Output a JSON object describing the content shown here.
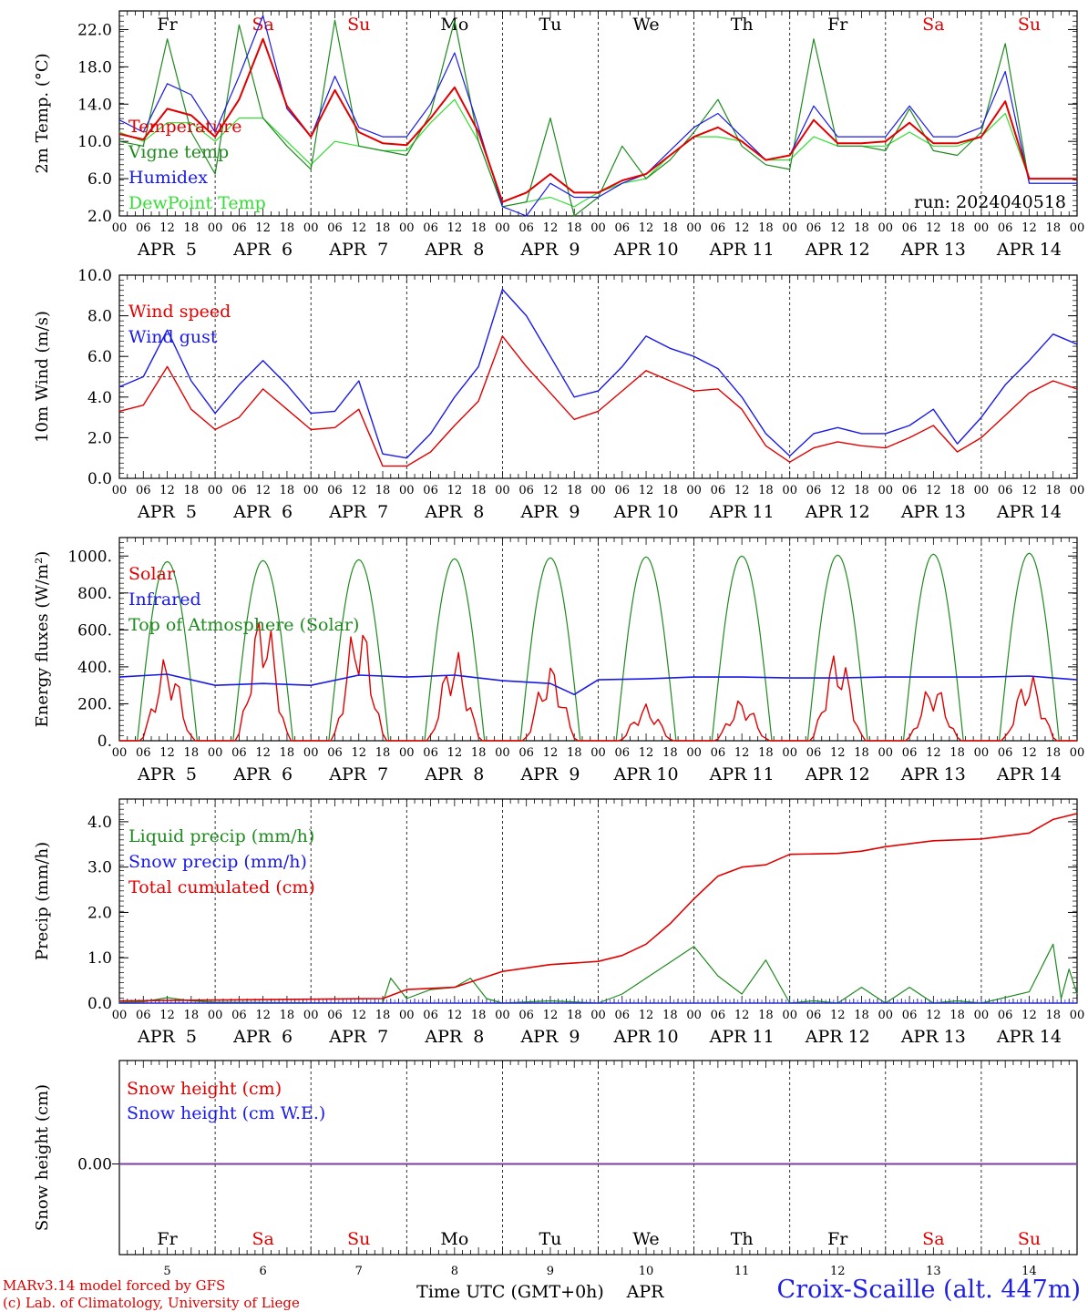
{
  "days": [
    {
      "dow": "Fr",
      "date": "APR  5",
      "num": "5",
      "weekend": false
    },
    {
      "dow": "Sa",
      "date": "APR  6",
      "num": "6",
      "weekend": true
    },
    {
      "dow": "Su",
      "date": "APR  7",
      "num": "7",
      "weekend": true
    },
    {
      "dow": "Mo",
      "date": "APR  8",
      "num": "8",
      "weekend": false
    },
    {
      "dow": "Tu",
      "date": "APR  9",
      "num": "9",
      "weekend": false
    },
    {
      "dow": "We",
      "date": "APR 10",
      "num": "10",
      "weekend": false
    },
    {
      "dow": "Th",
      "date": "APR 11",
      "num": "11",
      "weekend": false
    },
    {
      "dow": "Fr",
      "date": "APR 12",
      "num": "12",
      "weekend": false
    },
    {
      "dow": "Sa",
      "date": "APR 13",
      "num": "13",
      "weekend": true
    },
    {
      "dow": "Su",
      "date": "APR 14",
      "num": "14",
      "weekend": true
    }
  ],
  "hour_ticks": [
    "00",
    "06",
    "12",
    "18"
  ],
  "final_tick": "00",
  "colors": {
    "red": "#e00000",
    "blue": "#1a1ae6",
    "green": "#1f8a1f",
    "lightgreen": "#33dd33",
    "purple": "#7a3fa0"
  },
  "footer": {
    "model": "MARv3.14 model forced by GFS",
    "lab": "(c) Lab. of Climatology, University of Liege",
    "xlabel": "Time UTC (GMT+0h)",
    "month": "APR",
    "station": "Croix-Scaille (alt. 447m)"
  },
  "chart_data": [
    {
      "type": "line",
      "ylabel": "2m Temp. (°C)",
      "ylim": [
        2,
        24
      ],
      "yticks": [
        "2.0",
        "6.0",
        "10.0",
        "14.0",
        "18.0",
        "22.0"
      ],
      "annotation": "run: 2024040518",
      "x": [
        0,
        6,
        12,
        18,
        24,
        30,
        36,
        42,
        48,
        54,
        60,
        66,
        72,
        78,
        84,
        90,
        96,
        102,
        108,
        114,
        120,
        126,
        132,
        138,
        144,
        150,
        156,
        162,
        168,
        174,
        180,
        186,
        192,
        198,
        204,
        210,
        216,
        222,
        228,
        234,
        240
      ],
      "series": [
        {
          "name": "Temperature",
          "color": "red",
          "values": [
            10.8,
            10.2,
            13.5,
            12.8,
            10.5,
            14.5,
            21.0,
            13.8,
            10.5,
            15.5,
            11.0,
            9.8,
            9.6,
            12.5,
            15.8,
            11.0,
            3.5,
            4.5,
            6.5,
            4.5,
            4.5,
            5.8,
            6.5,
            8.5,
            10.5,
            11.5,
            10.0,
            8.0,
            8.5,
            12.3,
            9.8,
            9.8,
            10.0,
            12.0,
            9.8,
            9.8,
            10.5,
            14.3,
            6.0,
            6.0,
            6.0
          ]
        },
        {
          "name": "Vigne temp",
          "color": "green",
          "values": [
            10.0,
            9.5,
            21.0,
            11.0,
            6.5,
            22.5,
            12.5,
            9.5,
            7.0,
            23.0,
            9.5,
            9.0,
            8.5,
            13.0,
            23.0,
            10.0,
            3.0,
            3.5,
            12.5,
            1.5,
            4.0,
            9.5,
            6.0,
            8.0,
            11.0,
            14.5,
            9.5,
            7.5,
            7.0,
            21.0,
            9.5,
            9.5,
            9.0,
            13.5,
            9.0,
            8.5,
            11.0,
            20.5,
            5.5,
            5.5,
            5.5
          ]
        },
        {
          "name": "Humidex",
          "color": "blue",
          "values": [
            12.3,
            11.0,
            16.2,
            15.0,
            11.0,
            17.0,
            23.5,
            13.5,
            10.5,
            17.0,
            11.5,
            10.5,
            10.5,
            14.0,
            19.5,
            11.5,
            3.0,
            2.0,
            5.5,
            4.0,
            4.0,
            5.5,
            6.5,
            9.0,
            11.5,
            13.0,
            10.5,
            8.0,
            8.5,
            13.8,
            10.5,
            10.5,
            10.5,
            13.8,
            10.5,
            10.5,
            11.5,
            17.5,
            5.5,
            5.5,
            5.5
          ]
        },
        {
          "name": "DewPoint Temp",
          "color": "lightgreen",
          "values": [
            11.0,
            10.0,
            12.0,
            12.0,
            10.0,
            12.5,
            12.5,
            10.0,
            7.5,
            10.0,
            9.5,
            9.0,
            9.0,
            12.0,
            14.5,
            10.0,
            3.0,
            3.5,
            4.0,
            3.0,
            4.5,
            5.5,
            6.0,
            8.5,
            10.5,
            10.5,
            10.0,
            8.0,
            8.0,
            10.5,
            9.5,
            9.5,
            9.5,
            11.0,
            9.5,
            9.5,
            10.5,
            13.0,
            6.0,
            6.0,
            6.0
          ]
        }
      ]
    },
    {
      "type": "line",
      "ylabel": "10m Wind (m/s)",
      "ylim": [
        0,
        10
      ],
      "yticks": [
        "0.0",
        "2.0",
        "4.0",
        "6.0",
        "8.0",
        "10.0"
      ],
      "threshold": 5.0,
      "x": [
        0,
        6,
        12,
        18,
        24,
        30,
        36,
        42,
        48,
        54,
        60,
        66,
        72,
        78,
        84,
        90,
        96,
        102,
        108,
        114,
        120,
        126,
        132,
        138,
        144,
        150,
        156,
        162,
        168,
        174,
        180,
        186,
        192,
        198,
        204,
        210,
        216,
        222,
        228,
        234,
        240
      ],
      "series": [
        {
          "name": "Wind speed",
          "color": "red",
          "values": [
            3.3,
            3.6,
            5.5,
            3.4,
            2.4,
            3.0,
            4.4,
            3.4,
            2.4,
            2.5,
            3.4,
            0.6,
            0.6,
            1.3,
            2.6,
            3.8,
            7.0,
            5.5,
            4.2,
            2.9,
            3.3,
            4.3,
            5.3,
            4.8,
            4.3,
            4.4,
            3.4,
            1.6,
            0.8,
            1.5,
            1.8,
            1.6,
            1.5,
            2.0,
            2.6,
            1.3,
            2.0,
            3.1,
            4.2,
            4.8,
            4.4
          ]
        },
        {
          "name": "Wind gust",
          "color": "blue",
          "values": [
            4.5,
            5.0,
            7.3,
            4.8,
            3.2,
            4.6,
            5.8,
            4.6,
            3.2,
            3.3,
            4.8,
            1.2,
            1.0,
            2.2,
            4.0,
            5.5,
            9.3,
            8.0,
            6.0,
            4.0,
            4.3,
            5.5,
            7.0,
            6.4,
            6.0,
            5.4,
            4.0,
            2.2,
            1.1,
            2.2,
            2.5,
            2.2,
            2.2,
            2.6,
            3.4,
            1.7,
            3.0,
            4.6,
            5.8,
            7.1,
            6.6
          ]
        }
      ]
    },
    {
      "type": "line",
      "ylabel": "Energy fluxes (W/m²)",
      "ylim": [
        0,
        1100
      ],
      "yticks": [
        "0.",
        "200.",
        "400.",
        "600.",
        "800.",
        "1000."
      ],
      "series_labels": [
        {
          "name": "Solar",
          "color": "red"
        },
        {
          "name": "Infrared",
          "color": "blue"
        },
        {
          "name": "Top of Atmosphere (Solar)",
          "color": "green"
        }
      ],
      "toa_peaks": [
        970,
        975,
        980,
        985,
        990,
        995,
        1000,
        1005,
        1010,
        1015
      ],
      "solar_peaks": [
        460,
        730,
        680,
        500,
        420,
        200,
        230,
        500,
        320,
        370
      ],
      "infrared": {
        "x": [
          0,
          12,
          24,
          36,
          48,
          60,
          72,
          84,
          96,
          108,
          114,
          120,
          132,
          144,
          156,
          168,
          180,
          192,
          204,
          216,
          228,
          240
        ],
        "values": [
          345,
          360,
          300,
          310,
          300,
          355,
          345,
          355,
          325,
          310,
          250,
          330,
          335,
          345,
          345,
          340,
          340,
          345,
          345,
          345,
          350,
          330
        ]
      }
    },
    {
      "type": "line",
      "ylabel": "Precip (mm/h)",
      "ylim": [
        0,
        4.5
      ],
      "yticks": [
        "0.0",
        "1.0",
        "2.0",
        "3.0",
        "4.0"
      ],
      "series": [
        {
          "name": "Liquid precip (mm/h)",
          "color": "green",
          "x": [
            0,
            6,
            12,
            18,
            24,
            66,
            68,
            72,
            78,
            84,
            88,
            92,
            96,
            108,
            120,
            126,
            132,
            138,
            144,
            150,
            156,
            162,
            168,
            174,
            180,
            186,
            192,
            198,
            204,
            210,
            216,
            228,
            234,
            236,
            238,
            240
          ],
          "values": [
            0.02,
            0.03,
            0.12,
            0.05,
            0.02,
            0.0,
            0.55,
            0.1,
            0.3,
            0.35,
            0.55,
            0.1,
            0.0,
            0.05,
            0.0,
            0.2,
            0.55,
            0.9,
            1.25,
            0.6,
            0.2,
            0.95,
            0.0,
            0.05,
            0.0,
            0.35,
            0.0,
            0.35,
            0.0,
            0.05,
            0.0,
            0.25,
            1.3,
            0.1,
            0.75,
            0.2
          ]
        },
        {
          "name": "Snow precip (mm/h)",
          "color": "blue",
          "x": [
            0,
            240
          ],
          "values": [
            0.0,
            0.0
          ]
        },
        {
          "name": "Total cumulated (cm)",
          "color": "red",
          "x": [
            0,
            66,
            72,
            84,
            96,
            108,
            120,
            126,
            132,
            138,
            144,
            150,
            156,
            162,
            168,
            180,
            186,
            192,
            204,
            216,
            228,
            234,
            240
          ],
          "values": [
            0.05,
            0.1,
            0.3,
            0.35,
            0.7,
            0.85,
            0.92,
            1.05,
            1.3,
            1.75,
            2.3,
            2.8,
            3.0,
            3.05,
            3.28,
            3.3,
            3.35,
            3.45,
            3.58,
            3.62,
            3.75,
            4.05,
            4.18
          ]
        }
      ]
    },
    {
      "type": "line",
      "ylabel": "Snow height (cm)",
      "ylim": [
        -1,
        1
      ],
      "yticks": [
        "0.00"
      ],
      "series": [
        {
          "name": "Snow height (cm)",
          "color": "red",
          "x": [
            0,
            240
          ],
          "values": [
            0.0,
            0.0
          ]
        },
        {
          "name": "Snow height (cm W.E.)",
          "color": "blue",
          "x": [
            0,
            240
          ],
          "values": [
            0.0,
            0.0
          ]
        }
      ]
    }
  ]
}
